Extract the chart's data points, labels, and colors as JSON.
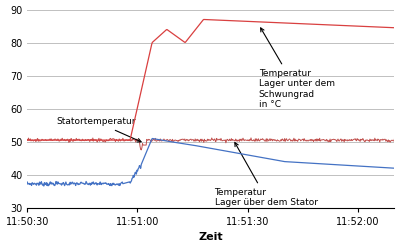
{
  "xlabel": "Zeit",
  "ylim": [
    30,
    90
  ],
  "yticks": [
    30,
    40,
    50,
    60,
    70,
    80,
    90
  ],
  "xlim": [
    0,
    100
  ],
  "xtick_pos": [
    0,
    30,
    60,
    90
  ],
  "xtick_labels": [
    "11:50:30",
    "11:51:00",
    "11:51:30",
    "11:52:00"
  ],
  "bg_color": "#ffffff",
  "grid_color": "#c0c0c0",
  "color_red": "#c0504d",
  "color_blue": "#4472c4",
  "annotation_lager_unter": "Temperatur\nLager unter dem\nSchwungrad\nin °C",
  "annotation_stator": "Statortemperatur",
  "annotation_lager_ueber": "Temperatur\nLager über dem Stator"
}
